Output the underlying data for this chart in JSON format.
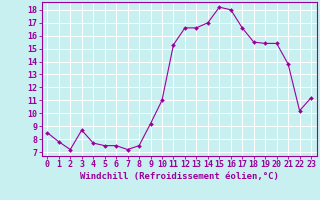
{
  "x": [
    0,
    1,
    2,
    3,
    4,
    5,
    6,
    7,
    8,
    9,
    10,
    11,
    12,
    13,
    14,
    15,
    16,
    17,
    18,
    19,
    20,
    21,
    22,
    23
  ],
  "y": [
    8.5,
    7.8,
    7.2,
    8.7,
    7.7,
    7.5,
    7.5,
    7.2,
    7.5,
    9.2,
    11.0,
    15.3,
    16.6,
    16.6,
    17.0,
    18.2,
    18.0,
    16.6,
    15.5,
    15.4,
    15.4,
    13.8,
    10.2,
    11.2
  ],
  "line_color": "#9b009b",
  "marker": "D",
  "marker_size": 2.0,
  "bg_color": "#c8f0f0",
  "grid_color": "#ffffff",
  "xlabel": "Windchill (Refroidissement éolien,°C)",
  "ylabel_ticks": [
    7,
    8,
    9,
    10,
    11,
    12,
    13,
    14,
    15,
    16,
    17,
    18
  ],
  "ylim": [
    6.7,
    18.6
  ],
  "xlim": [
    -0.5,
    23.5
  ],
  "xlabel_color": "#9b009b",
  "tick_color": "#9b009b",
  "spine_color": "#9b009b",
  "font_size": 6.0
}
